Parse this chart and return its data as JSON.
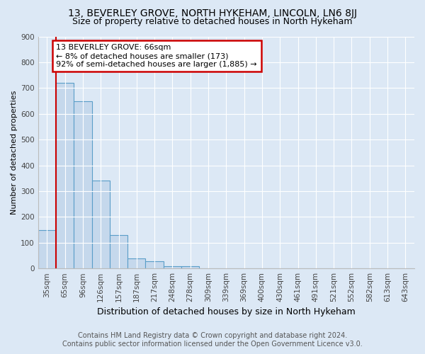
{
  "title": "13, BEVERLEY GROVE, NORTH HYKEHAM, LINCOLN, LN6 8JJ",
  "subtitle": "Size of property relative to detached houses in North Hykeham",
  "xlabel": "Distribution of detached houses by size in North Hykeham",
  "ylabel": "Number of detached properties",
  "footer_line1": "Contains HM Land Registry data © Crown copyright and database right 2024.",
  "footer_line2": "Contains public sector information licensed under the Open Government Licence v3.0.",
  "categories": [
    "35sqm",
    "65sqm",
    "96sqm",
    "126sqm",
    "157sqm",
    "187sqm",
    "217sqm",
    "248sqm",
    "278sqm",
    "309sqm",
    "339sqm",
    "369sqm",
    "400sqm",
    "430sqm",
    "461sqm",
    "491sqm",
    "521sqm",
    "552sqm",
    "582sqm",
    "613sqm",
    "643sqm"
  ],
  "values": [
    150,
    720,
    650,
    340,
    130,
    40,
    28,
    10,
    8,
    0,
    0,
    0,
    0,
    0,
    0,
    0,
    0,
    0,
    0,
    0,
    0
  ],
  "bar_color": "#c5d8ec",
  "bar_edge_color": "#5a9ec8",
  "annotation_box_text": "13 BEVERLEY GROVE: 66sqm\n← 8% of detached houses are smaller (173)\n92% of semi-detached houses are larger (1,885) →",
  "annotation_box_color": "#ffffff",
  "annotation_box_edge_color": "#cc0000",
  "vline_x_index": 0,
  "vline_color": "#cc0000",
  "ylim": [
    0,
    900
  ],
  "yticks": [
    0,
    100,
    200,
    300,
    400,
    500,
    600,
    700,
    800,
    900
  ],
  "bg_color": "#dce8f5",
  "plot_bg_color": "#dce8f5",
  "title_fontsize": 10,
  "subtitle_fontsize": 9,
  "xlabel_fontsize": 9,
  "ylabel_fontsize": 8,
  "tick_fontsize": 7.5,
  "footer_fontsize": 7
}
